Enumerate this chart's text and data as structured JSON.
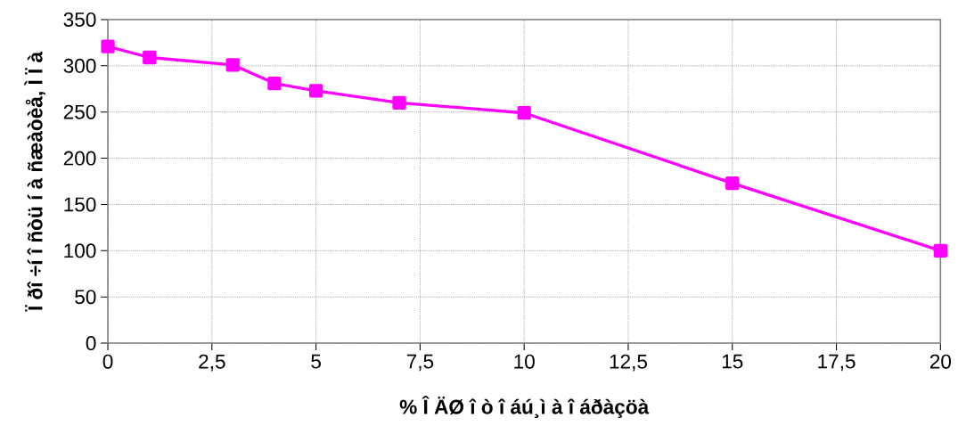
{
  "chart_data": {
    "type": "line",
    "xlabel": "% Î ÄØ î ò î áú¸ì à î áðàçöà",
    "ylabel": "Ï ðî ÷í î ñòü í à ñæàòèå, Ì Ï à",
    "x": [
      0,
      1,
      3,
      4,
      5,
      7,
      10,
      15,
      20
    ],
    "series": [
      {
        "color": "#ff00ff",
        "values": [
          321,
          309,
          301,
          281,
          273,
          260,
          249,
          173,
          100
        ]
      }
    ],
    "xlim": [
      0,
      20
    ],
    "xticks": [
      0,
      {
        "value": 2.5,
        "label": "2,5"
      },
      5,
      {
        "value": 7.5,
        "label": "7,5"
      },
      10,
      {
        "value": 12.5,
        "label": "12,5"
      },
      15,
      {
        "value": 17.5,
        "label": "17,5"
      },
      20
    ],
    "ylim": [
      0,
      350
    ],
    "yticks": [
      0,
      50,
      100,
      150,
      200,
      250,
      300,
      350
    ],
    "grid": true,
    "marker": "square",
    "line_style": "solid"
  }
}
